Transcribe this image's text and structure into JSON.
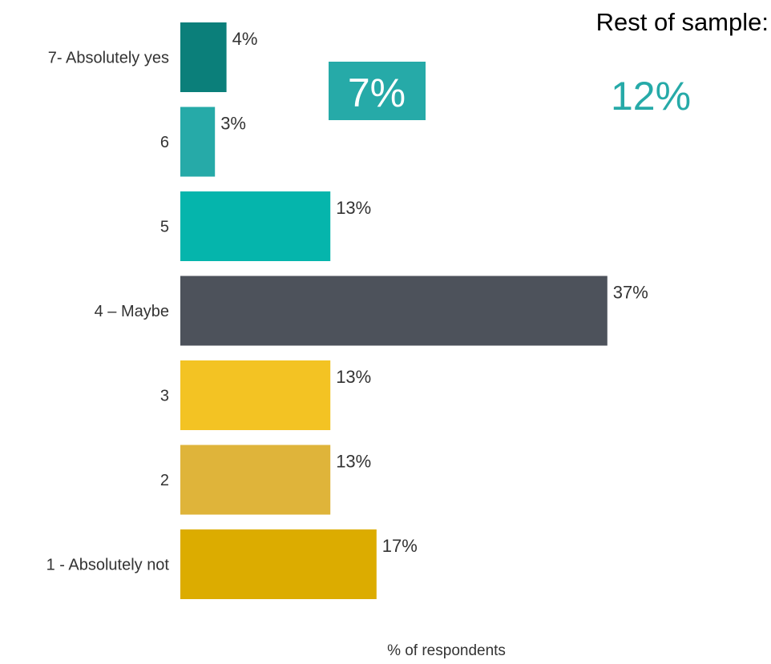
{
  "chart_data": {
    "type": "bar",
    "orientation": "horizontal",
    "categories": [
      "7- Absolutely yes",
      "6",
      "5",
      "4 – Maybe",
      "3",
      "2",
      "1 - Absolutely not"
    ],
    "values": [
      4,
      3,
      13,
      37,
      13,
      13,
      17
    ],
    "value_labels": [
      "4%",
      "3%",
      "13%",
      "37%",
      "13%",
      "13%",
      "17%"
    ],
    "colors": [
      "#0b7f7a",
      "#26aaa8",
      "#05b5ac",
      "#4d525b",
      "#f3c323",
      "#dfb43a",
      "#dcac00"
    ],
    "title": "",
    "xlabel": "% of respondents",
    "ylabel": "",
    "grid": false,
    "legend": "none"
  },
  "callout": {
    "value": "7%",
    "box_color": "#26aaa8"
  },
  "rest_of_sample": {
    "title": "Rest of sample:",
    "value": "12%",
    "color": "#26aaa8"
  }
}
